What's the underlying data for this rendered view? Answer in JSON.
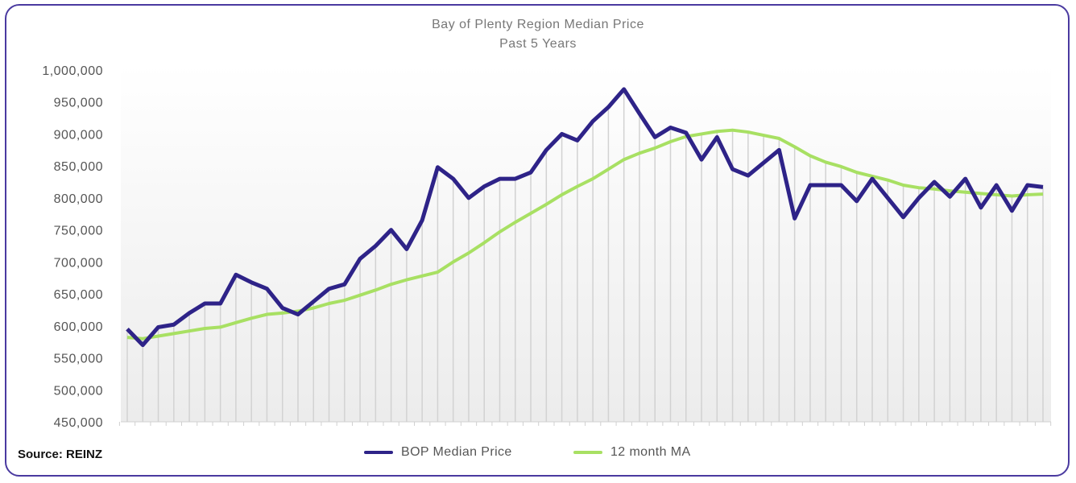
{
  "chart_data": {
    "type": "line",
    "title": "Bay of Plenty Region Median Price",
    "subtitle": "Past 5 Years",
    "xlabel": "",
    "ylabel": "",
    "ylim": [
      450000,
      1000000
    ],
    "yticks": [
      "1,000,000",
      "950,000",
      "900,000",
      "850,000",
      "800,000",
      "750,000",
      "700,000",
      "650,000",
      "600,000",
      "550,000",
      "500,000",
      "450,000"
    ],
    "ytick_values": [
      1000000,
      950000,
      900000,
      850000,
      800000,
      750000,
      700000,
      650000,
      600000,
      550000,
      500000,
      450000
    ],
    "legend_position": "bottom",
    "series": [
      {
        "name": "BOP Median Price",
        "color": "#2e2388",
        "values": [
          595000,
          570000,
          598000,
          602000,
          620000,
          635000,
          635000,
          680000,
          668000,
          658000,
          628000,
          618000,
          638000,
          658000,
          665000,
          705000,
          725000,
          750000,
          720000,
          765000,
          848000,
          830000,
          800000,
          818000,
          830000,
          830000,
          840000,
          875000,
          900000,
          890000,
          920000,
          942000,
          970000,
          932000,
          895000,
          910000,
          902000,
          860000,
          895000,
          845000,
          835000,
          855000,
          875000,
          768000,
          820000,
          820000,
          820000,
          795000,
          830000,
          800000,
          770000,
          800000,
          825000,
          802000,
          830000,
          785000,
          820000,
          780000,
          820000,
          817000
        ]
      },
      {
        "name": "12 month MA",
        "color": "#a8e063",
        "values": [
          582000,
          580000,
          584000,
          588000,
          592000,
          596000,
          598000,
          605000,
          612000,
          618000,
          620000,
          623000,
          628000,
          635000,
          640000,
          648000,
          656000,
          665000,
          672000,
          678000,
          684000,
          700000,
          714000,
          730000,
          747000,
          762000,
          776000,
          790000,
          805000,
          818000,
          830000,
          845000,
          860000,
          870000,
          878000,
          888000,
          896000,
          900000,
          904000,
          906000,
          903000,
          898000,
          893000,
          880000,
          866000,
          856000,
          849000,
          840000,
          834000,
          828000,
          820000,
          816000,
          814000,
          811000,
          809000,
          807000,
          805000,
          803000,
          805000,
          806000
        ]
      }
    ]
  },
  "source": "Source: REINZ"
}
